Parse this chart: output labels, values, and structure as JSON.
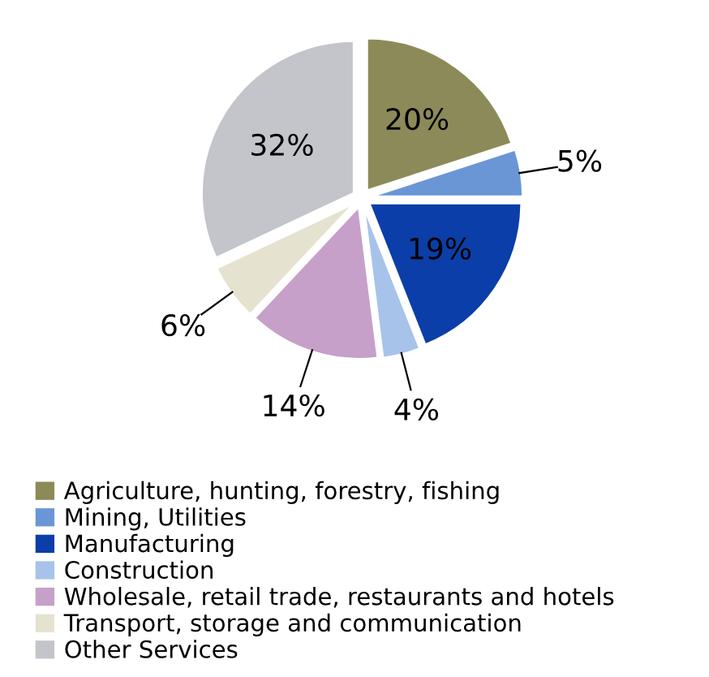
{
  "chart_data": {
    "type": "pie",
    "categories": [
      "Agriculture, hunting, forestry, fishing",
      "Mining, Utilities",
      "Manufacturing",
      "Construction",
      "Wholesale, retail trade, restaurants and hotels",
      "Transport, storage and communication",
      "Other Services"
    ],
    "values": [
      20,
      5,
      19,
      4,
      14,
      6,
      32
    ],
    "colors": [
      "#8c8a58",
      "#6b96d6",
      "#0b3ea8",
      "#a8c3ea",
      "#c6a0c9",
      "#e6e2d0",
      "#c3c5cb"
    ],
    "value_labels": [
      "20%",
      "5%",
      "19%",
      "4%",
      "14%",
      "6%",
      "32%"
    ],
    "legend": "bottom"
  }
}
